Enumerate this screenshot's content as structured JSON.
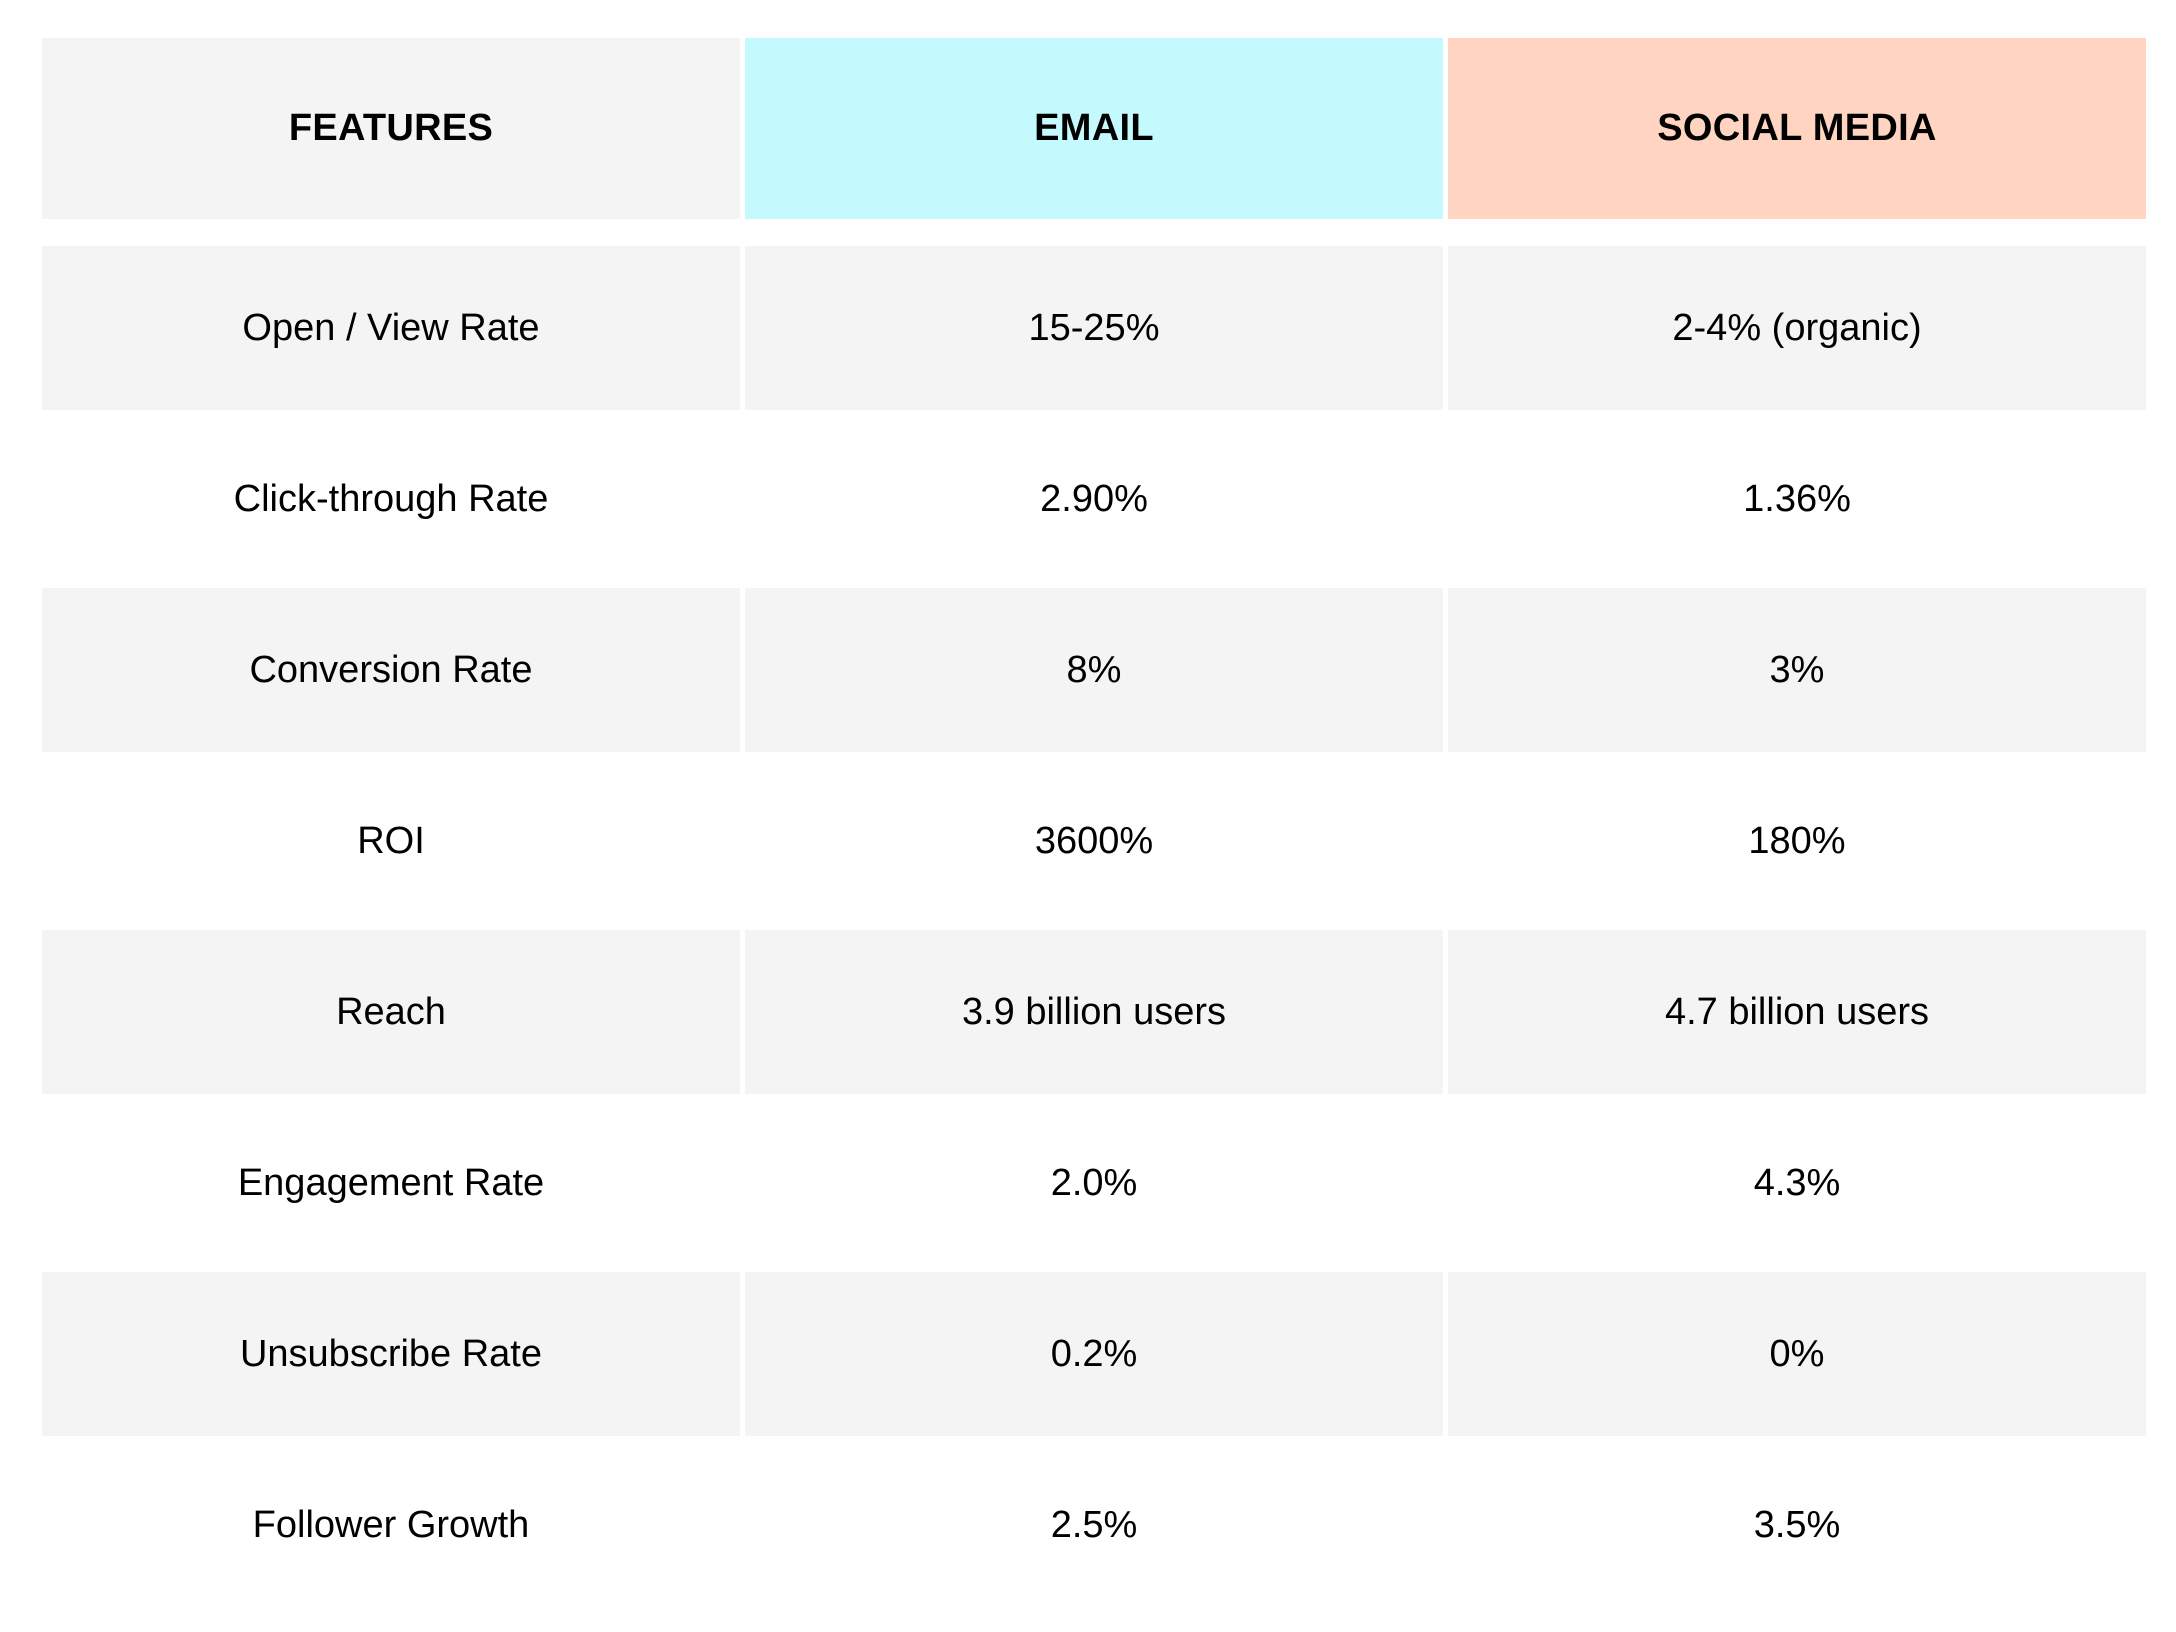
{
  "table": {
    "headers": [
      {
        "label": "FEATURES",
        "color": "#f4f4f4"
      },
      {
        "label": "EMAIL",
        "color": "#c4f9fe"
      },
      {
        "label": "SOCIAL MEDIA",
        "color": "#ffd4c0"
      }
    ],
    "rows": [
      {
        "feature": "Open / View Rate",
        "email": "15-25%",
        "social": "2-4% (organic)"
      },
      {
        "feature": "Click-through Rate",
        "email": "2.90%",
        "social": "1.36%"
      },
      {
        "feature": "Conversion Rate",
        "email": "8%",
        "social": "3%"
      },
      {
        "feature": "ROI",
        "email": "3600%",
        "social": "180%"
      },
      {
        "feature": "Reach",
        "email": "3.9 billion users",
        "social": "4.7 billion users"
      },
      {
        "feature": "Engagement Rate",
        "email": "2.0%",
        "social": "4.3%"
      },
      {
        "feature": "Unsubscribe Rate",
        "email": "0.2%",
        "social": "0%"
      },
      {
        "feature": "Follower Growth",
        "email": "2.5%",
        "social": "3.5%"
      }
    ],
    "row_shading_color": "#f4f4f4"
  }
}
